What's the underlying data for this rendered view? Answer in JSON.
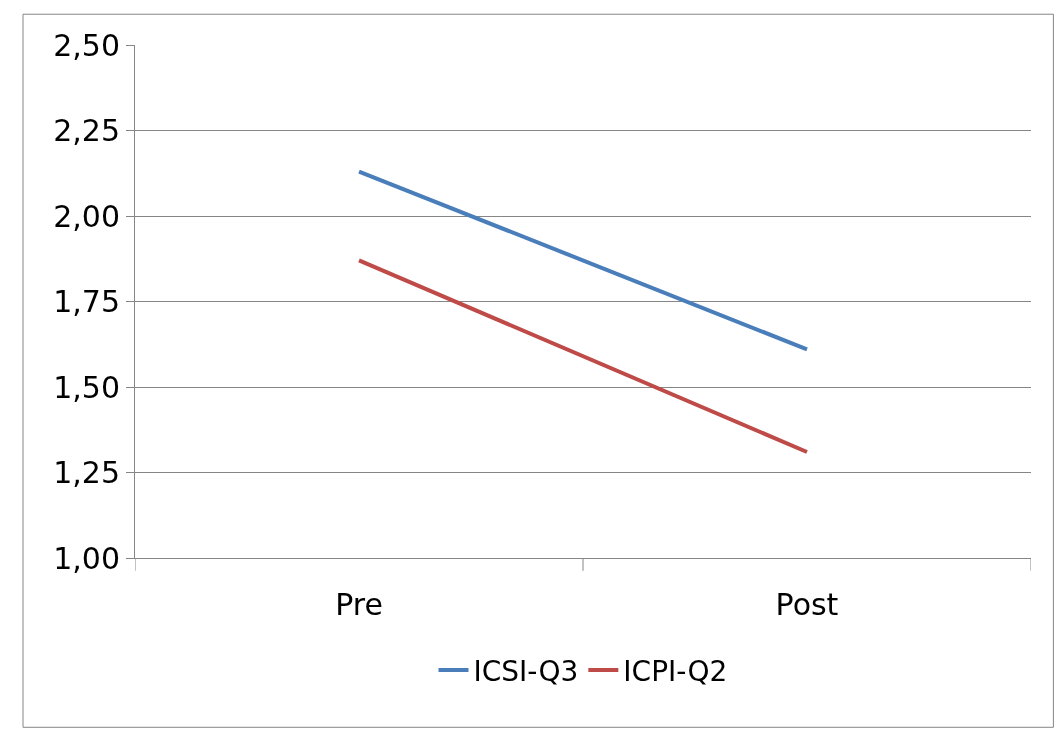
{
  "chart_data": {
    "type": "line",
    "categories": [
      "Pre",
      "Post"
    ],
    "series": [
      {
        "name": "ICSI-Q3",
        "color": "#4a7ebb",
        "values": [
          2.13,
          1.61
        ]
      },
      {
        "name": "ICPI-Q2",
        "color": "#be4b48",
        "values": [
          1.87,
          1.31
        ]
      }
    ],
    "ylim": [
      1.0,
      2.5
    ],
    "yticks": [
      {
        "value": 1.0,
        "label": "1,00"
      },
      {
        "value": 1.25,
        "label": "1,25"
      },
      {
        "value": 1.5,
        "label": "1,50"
      },
      {
        "value": 1.75,
        "label": "1,75"
      },
      {
        "value": 2.0,
        "label": "2,00"
      },
      {
        "value": 2.25,
        "label": "2,25"
      },
      {
        "value": 2.5,
        "label": "2,50"
      }
    ],
    "grid": "y",
    "legend": "bottom",
    "marker": "none",
    "line_style": "solid"
  }
}
